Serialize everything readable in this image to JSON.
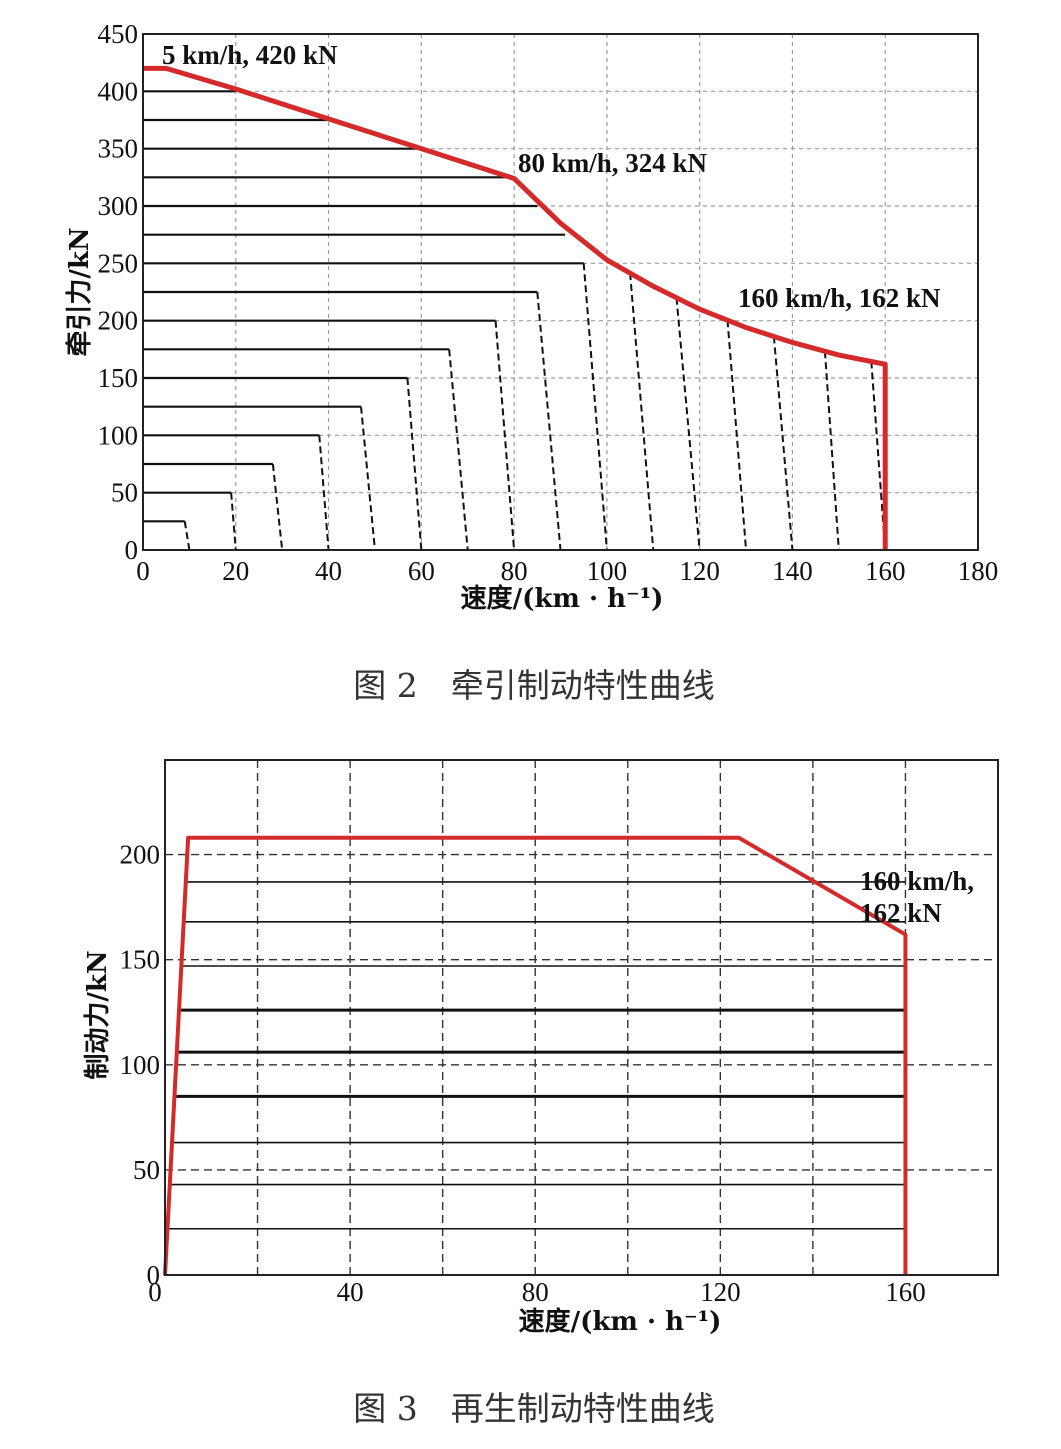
{
  "figures": [
    {
      "caption": "图 2　牵引制动特性曲线"
    },
    {
      "caption": "图 3　再生制动特性曲线"
    }
  ],
  "chart_data": [
    {
      "type": "line",
      "title": "",
      "xlabel": "速度/(km · h⁻¹)",
      "ylabel": "牵引力/kN",
      "xlim": [
        0,
        180
      ],
      "ylim": [
        0,
        450
      ],
      "xticks": [
        0,
        20,
        40,
        60,
        80,
        100,
        120,
        140,
        160,
        180
      ],
      "yticks": [
        0,
        50,
        100,
        150,
        200,
        250,
        300,
        350,
        400,
        450
      ],
      "grid": true,
      "series": [
        {
          "role": "envelope",
          "color": "#d42a2a",
          "points": [
            [
              0,
              420
            ],
            [
              5,
              420
            ],
            [
              20,
              402
            ],
            [
              40,
              376
            ],
            [
              60,
              350
            ],
            [
              80,
              324
            ],
            [
              90,
              285
            ],
            [
              100,
              253
            ],
            [
              110,
              230
            ],
            [
              120,
              210
            ],
            [
              130,
              194
            ],
            [
              140,
              181
            ],
            [
              150,
              170
            ],
            [
              160,
              162
            ],
            [
              160,
              0
            ]
          ]
        }
      ],
      "level_lines": [
        {
          "force": 25,
          "x_end": 9,
          "x_zero": 10
        },
        {
          "force": 50,
          "x_end": 19,
          "x_zero": 20
        },
        {
          "force": 75,
          "x_end": 28,
          "x_zero": 30
        },
        {
          "force": 100,
          "x_end": 38,
          "x_zero": 40
        },
        {
          "force": 125,
          "x_end": 47,
          "x_zero": 50
        },
        {
          "force": 150,
          "x_end": 57,
          "x_zero": 60
        },
        {
          "force": 175,
          "x_end": 66,
          "x_zero": 70
        },
        {
          "force": 200,
          "x_end": 76,
          "x_zero": 80
        },
        {
          "force": 225,
          "x_end": 85,
          "x_zero": 90
        },
        {
          "force": 250,
          "x_end": 95,
          "x_zero": 100
        },
        {
          "force": 275,
          "x_end": 91,
          "x_zero": null
        },
        {
          "force": 300,
          "x_end": 85,
          "x_zero": null
        },
        {
          "force": 325,
          "x_end": 80,
          "x_zero": null
        },
        {
          "force": 350,
          "x_end": 60,
          "x_zero": null
        },
        {
          "force": 375,
          "x_end": 40,
          "x_zero": null
        },
        {
          "force": 400,
          "x_end": 20,
          "x_zero": null
        }
      ],
      "envelope_drops": [
        {
          "x_top": 105,
          "x_zero": 110
        },
        {
          "x_top": 115,
          "x_zero": 120
        },
        {
          "x_top": 126,
          "x_zero": 130
        },
        {
          "x_top": 136,
          "x_zero": 140
        },
        {
          "x_top": 147,
          "x_zero": 150
        },
        {
          "x_top": 157,
          "x_zero": 160
        }
      ],
      "annotations": [
        {
          "text": "5 km/h, 420 kN",
          "x": 5,
          "y": 420
        },
        {
          "text": "80 km/h, 324 kN",
          "x": 80,
          "y": 324
        },
        {
          "text": "160 km/h, 162 kN",
          "x": 160,
          "y": 162
        }
      ]
    },
    {
      "type": "line",
      "title": "",
      "xlabel": "速度/(km · h⁻¹)",
      "ylabel": "制动力/kN",
      "xlim": [
        0,
        180
      ],
      "ylim": [
        0,
        245
      ],
      "xticks": [
        0,
        40,
        80,
        120,
        160
      ],
      "xgrid": [
        20,
        40,
        60,
        80,
        100,
        120,
        140,
        160
      ],
      "yticks": [
        0,
        50,
        100,
        150,
        200
      ],
      "grid": true,
      "series": [
        {
          "role": "envelope",
          "color": "#d42a2a",
          "points": [
            [
              0,
              0
            ],
            [
              5,
              208
            ],
            [
              124,
              208
            ],
            [
              160,
              162
            ],
            [
              160,
              0
            ]
          ]
        }
      ],
      "level_lines": [
        22,
        43,
        63,
        85,
        106,
        126,
        147,
        168,
        187
      ],
      "annotations": [
        {
          "text": "160 km/h,",
          "x": 160,
          "y": 162
        },
        {
          "text": "162 kN",
          "x": 160,
          "y": 162
        }
      ]
    }
  ]
}
